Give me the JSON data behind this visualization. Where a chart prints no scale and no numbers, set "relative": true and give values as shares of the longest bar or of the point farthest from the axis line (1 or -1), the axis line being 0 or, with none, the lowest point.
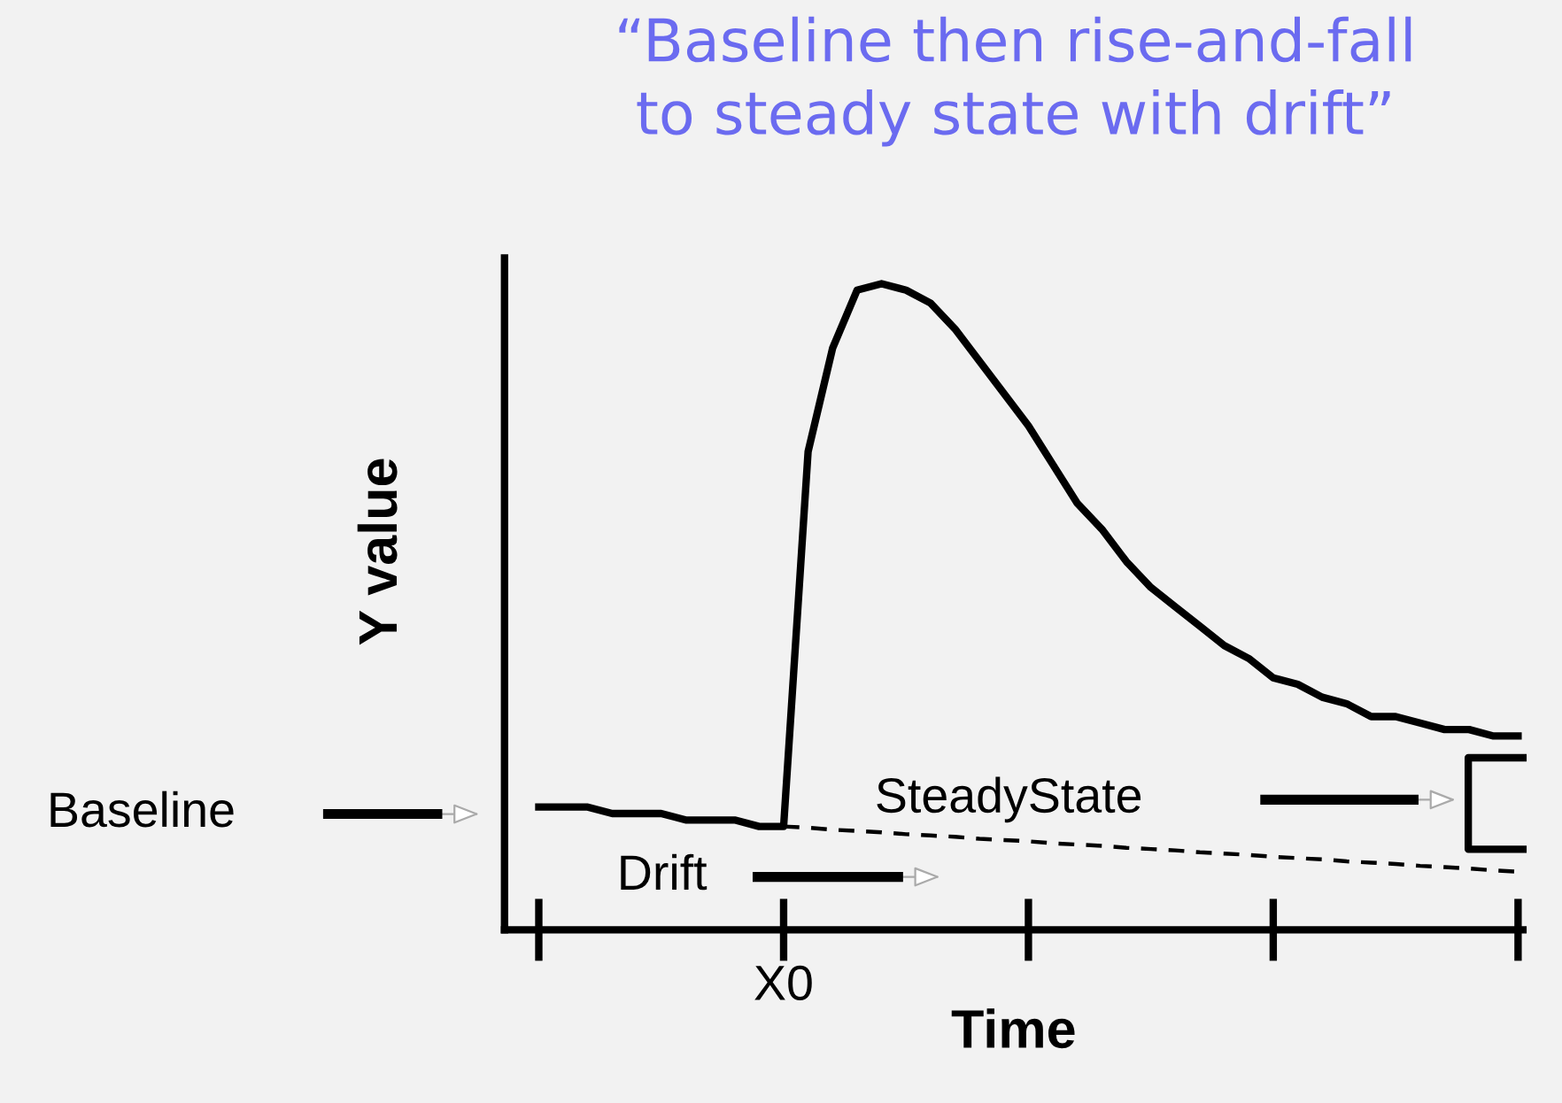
{
  "chart_data": {
    "type": "line",
    "title": "“Baseline then rise-and-fall\nto steady state with drift”",
    "xlabel": "Time",
    "ylabel": "Y value",
    "relative": true,
    "categories": [
      null,
      null,
      null,
      null,
      null,
      null,
      null,
      null,
      null,
      null,
      null,
      null,
      null,
      null,
      null,
      null,
      null,
      null,
      null,
      null,
      null,
      null,
      null,
      null,
      null,
      null,
      null,
      null,
      null,
      null,
      null,
      null,
      null,
      null,
      null,
      null,
      null,
      null,
      null,
      null,
      null
    ],
    "series": [
      {
        "color": "#000000",
        "line_style": "solid",
        "values": [
          0.19,
          0.19,
          0.19,
          0.18,
          0.18,
          0.18,
          0.17,
          0.17,
          0.17,
          0.16,
          0.16,
          0.74,
          0.9,
          0.99,
          1.0,
          0.99,
          0.97,
          0.93,
          0.88,
          0.83,
          0.78,
          0.72,
          0.66,
          0.62,
          0.57,
          0.53,
          0.5,
          0.47,
          0.44,
          0.42,
          0.39,
          0.38,
          0.36,
          0.35,
          0.33,
          0.33,
          0.32,
          0.31,
          0.31,
          0.3,
          0.3
        ]
      },
      {
        "color": "#000000",
        "line_style": "dashed",
        "values": [
          null,
          null,
          null,
          null,
          null,
          null,
          null,
          null,
          null,
          null,
          0.16,
          0.158,
          0.155,
          0.153,
          0.151,
          0.148,
          0.146,
          0.144,
          0.141,
          0.139,
          0.137,
          0.134,
          0.132,
          0.13,
          0.127,
          0.125,
          0.123,
          0.12,
          0.118,
          0.116,
          0.113,
          0.111,
          0.109,
          0.106,
          0.104,
          0.102,
          0.099,
          0.097,
          0.095,
          0.092,
          0.09
        ]
      }
    ],
    "annotations": [
      "Baseline",
      "Drift",
      "SteadyState",
      "X0"
    ],
    "legend": false
  }
}
